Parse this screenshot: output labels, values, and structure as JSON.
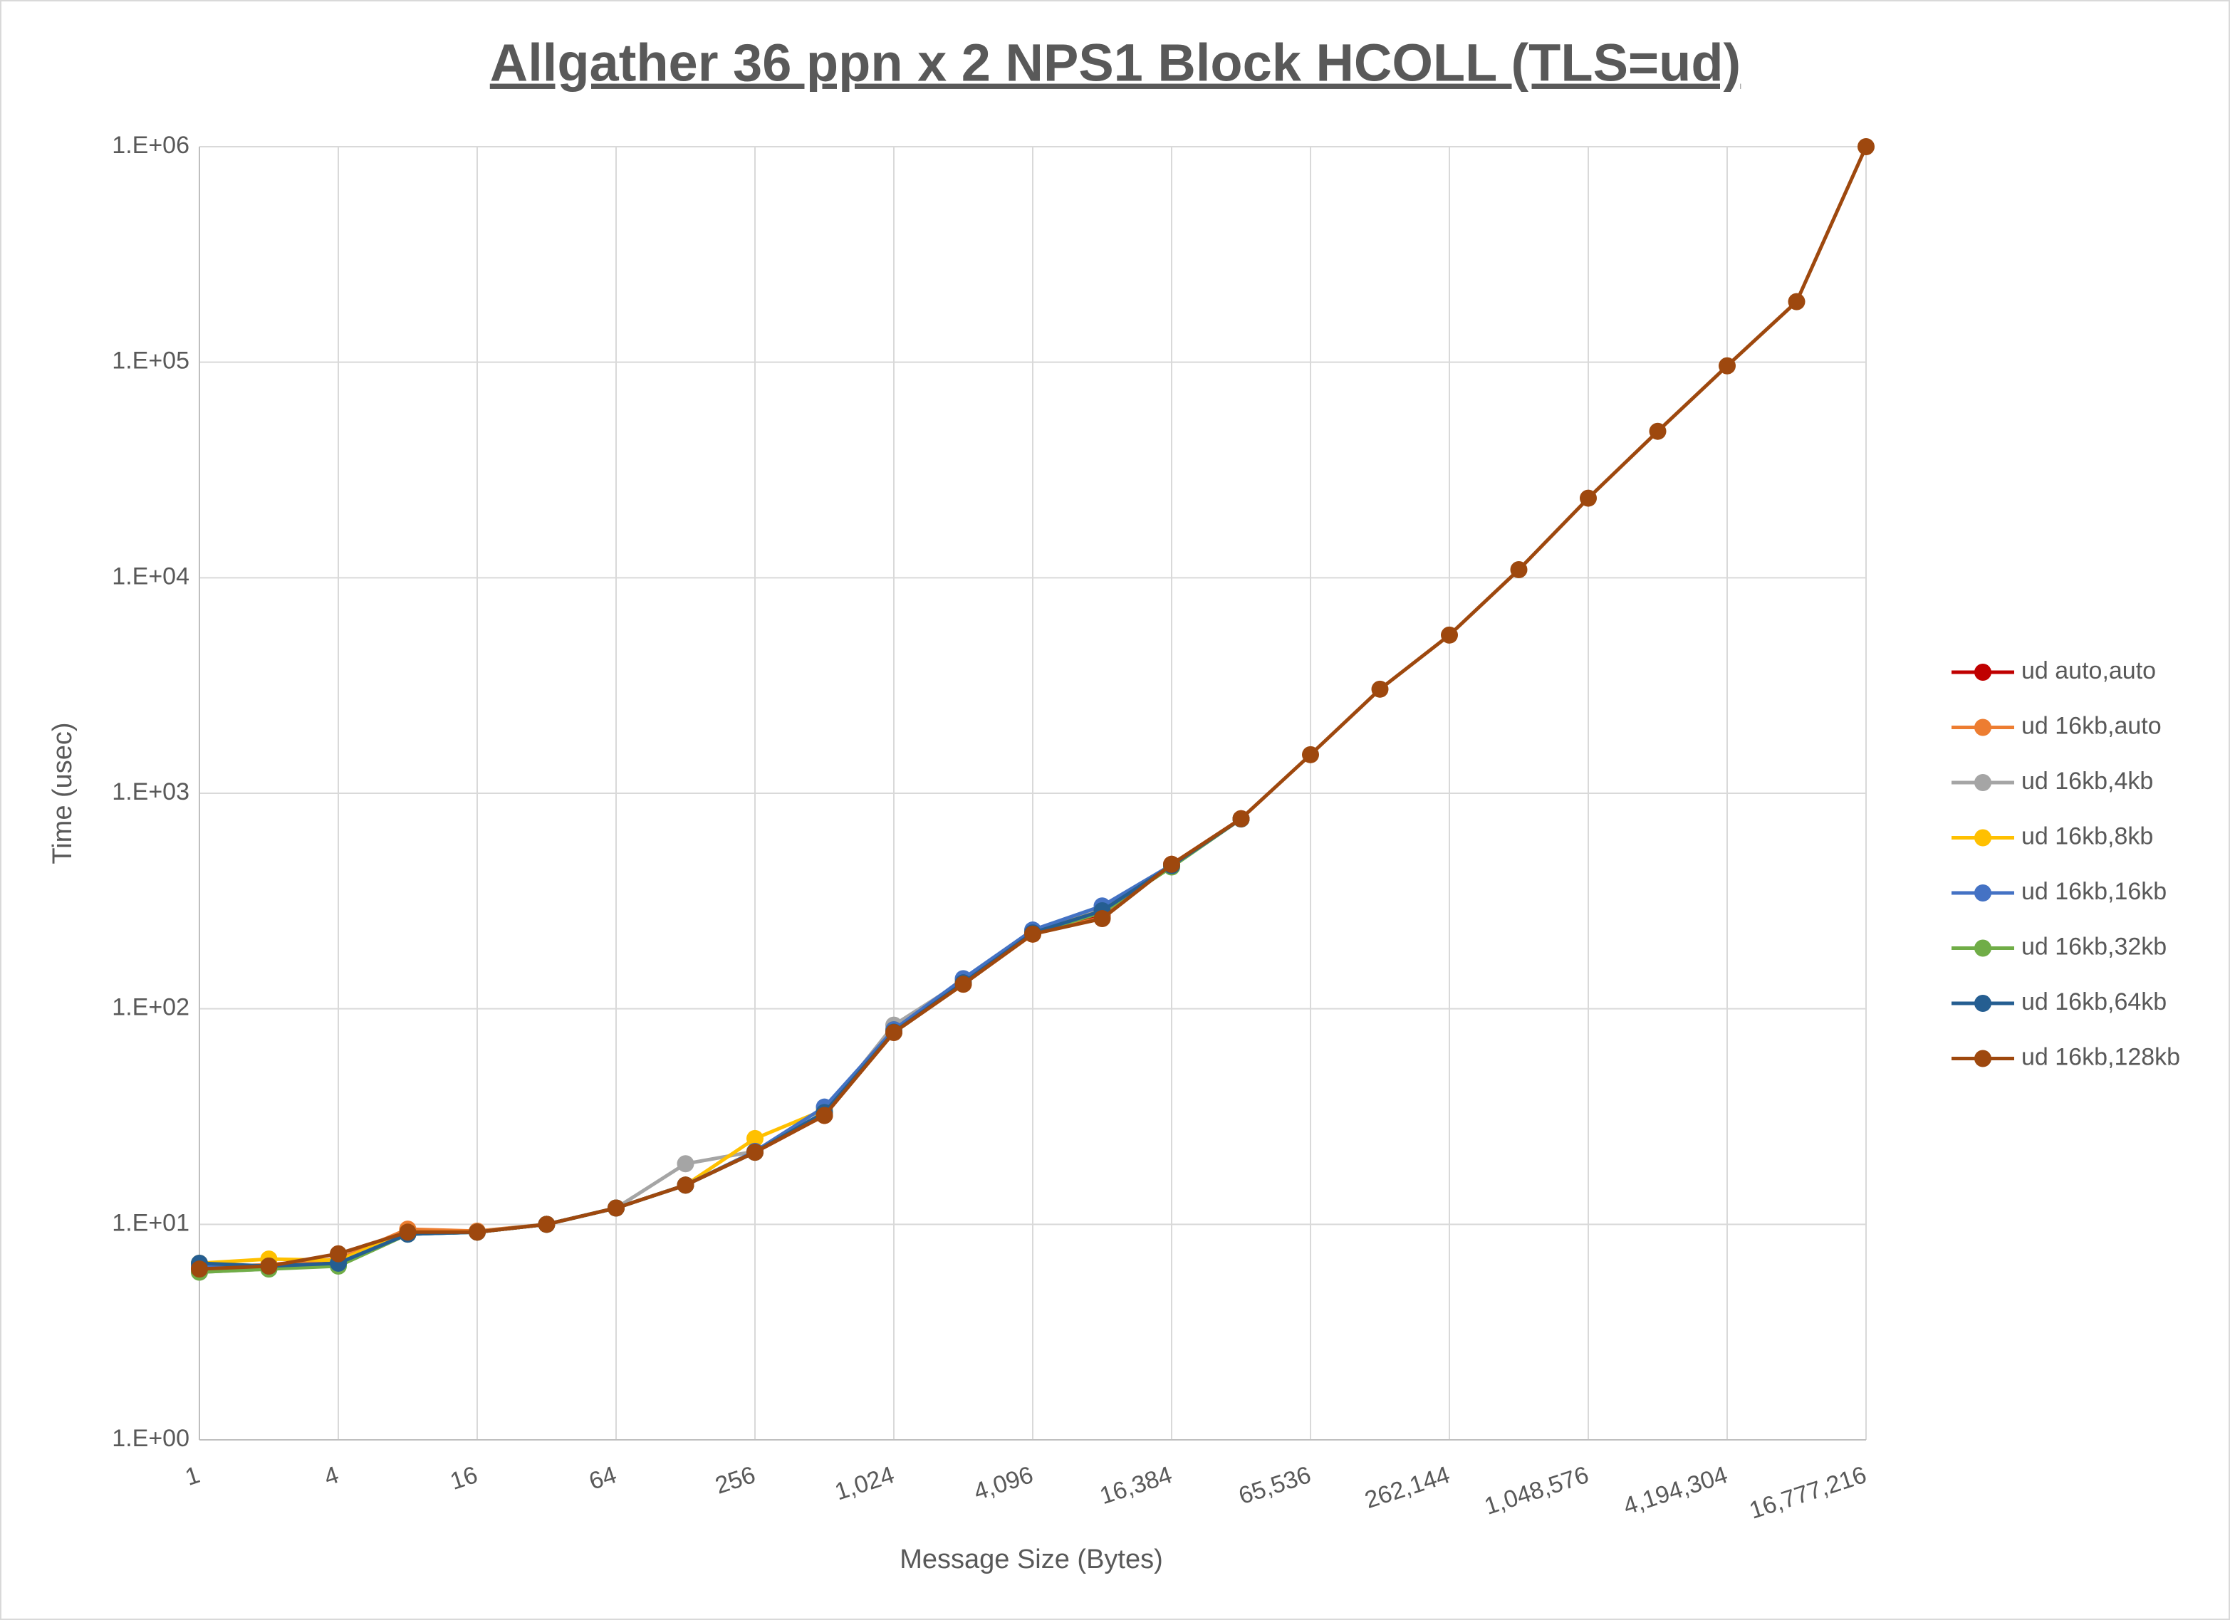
{
  "chart_data": {
    "type": "line",
    "title": "Allgather 36 ppn x 2 NPS1 Block HCOLL (TLS=ud)",
    "x_label": "Message Size (Bytes)",
    "y_label": "Time (usec)",
    "x": [
      1,
      2,
      4,
      8,
      16,
      32,
      64,
      128,
      256,
      512,
      1024,
      2048,
      4096,
      8192,
      16384,
      32768,
      65536,
      131072,
      262144,
      524288,
      1048576,
      2097152,
      4194304,
      8388608,
      16777216
    ],
    "xscale": "log",
    "yscale": "log",
    "xlim": [
      1,
      16777216
    ],
    "ylim": [
      1,
      1000000
    ],
    "xticks": [
      1,
      4,
      16,
      64,
      256,
      {
        "value": 1024,
        "label": "1,024"
      },
      {
        "value": 4096,
        "label": "4,096"
      },
      {
        "value": 16384,
        "label": "16,384"
      },
      {
        "value": 65536,
        "label": "65,536"
      },
      {
        "value": 262144,
        "label": "262,144"
      },
      {
        "value": 1048576,
        "label": "1,048,576"
      },
      {
        "value": 4194304,
        "label": "4,194,304"
      },
      {
        "value": 16777216,
        "label": "16,777,216"
      }
    ],
    "yticks": [
      {
        "value": 1,
        "label": "1.E+00"
      },
      {
        "value": 10,
        "label": "1.E+01"
      },
      {
        "value": 100,
        "label": "1.E+02"
      },
      {
        "value": 1000,
        "label": "1.E+03"
      },
      {
        "value": 10000,
        "label": "1.E+04"
      },
      {
        "value": 100000,
        "label": "1.E+05"
      },
      {
        "value": 1000000,
        "label": "1.E+06"
      }
    ],
    "grid": true,
    "legend": "right",
    "series": [
      {
        "name": "ud auto,auto",
        "color": "#c00000",
        "values": [
          6.3,
          6.4,
          6.8,
          9.2,
          9.2,
          10.0,
          11.9,
          15.2,
          21.6,
          32,
          78,
          131,
          225,
          270,
          468,
          762,
          null,
          null,
          null,
          null,
          null,
          null,
          null,
          null,
          null
        ]
      },
      {
        "name": "ud 16kb,auto",
        "color": "#ed7d31",
        "values": [
          6.3,
          6.5,
          6.9,
          9.5,
          9.3,
          10.0,
          11.9,
          15.2,
          21.6,
          32,
          78,
          130,
          222,
          265,
          468,
          762,
          null,
          null,
          null,
          null,
          null,
          null,
          null,
          null,
          null
        ]
      },
      {
        "name": "ud 16kb,4kb",
        "color": "#a5a5a5",
        "values": [
          6.0,
          6.2,
          6.6,
          9.1,
          9.2,
          10.0,
          11.9,
          19.1,
          21.8,
          33,
          84,
          135,
          228,
          290,
          465,
          760,
          null,
          null,
          null,
          null,
          null,
          null,
          null,
          null,
          null
        ]
      },
      {
        "name": "ud 16kb,8kb",
        "color": "#ffc000",
        "values": [
          6.6,
          6.9,
          6.8,
          9.2,
          9.2,
          10.0,
          11.9,
          15.2,
          25,
          34,
          80,
          133,
          226,
          285,
          465,
          760,
          null,
          null,
          null,
          null,
          null,
          null,
          null,
          null,
          null
        ]
      },
      {
        "name": "ud 16kb,16kb",
        "color": "#4472c4",
        "values": [
          6.4,
          6.3,
          6.6,
          9.0,
          9.2,
          10.0,
          11.9,
          15.2,
          21.8,
          35,
          80,
          138,
          232,
          300,
          465,
          760,
          null,
          null,
          null,
          null,
          null,
          null,
          null,
          null,
          null
        ]
      },
      {
        "name": "ud 16kb,32kb",
        "color": "#70ad47",
        "values": [
          6.0,
          6.2,
          6.4,
          9.0,
          9.2,
          10.0,
          11.9,
          15.2,
          21.6,
          33,
          78,
          131,
          224,
          280,
          455,
          760,
          null,
          null,
          null,
          null,
          null,
          null,
          null,
          null,
          null
        ]
      },
      {
        "name": "ud 16kb,64kb",
        "color": "#255e91",
        "values": [
          6.6,
          6.4,
          6.6,
          9.0,
          9.2,
          10.0,
          11.9,
          15.2,
          21.6,
          33,
          78,
          132,
          225,
          285,
          462,
          760,
          null,
          null,
          null,
          null,
          null,
          null,
          null,
          null,
          null
        ]
      },
      {
        "name": "ud 16kb,128kb",
        "color": "#9e480e",
        "values": [
          6.2,
          6.4,
          7.3,
          9.2,
          9.2,
          10.0,
          11.9,
          15.2,
          21.6,
          32,
          77.6,
          130,
          222,
          262,
          468,
          762,
          1510,
          3040,
          5420,
          10900,
          23400,
          47800,
          96200,
          191000,
          1000000
        ]
      }
    ]
  }
}
